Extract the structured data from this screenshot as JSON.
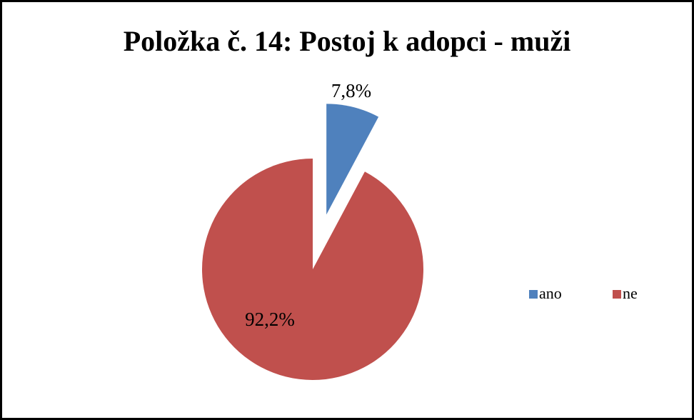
{
  "chart_data": {
    "type": "pie",
    "title": "Položka č. 14: Postoj k adopci - muži",
    "categories": [
      "ano",
      "ne"
    ],
    "values": [
      7.8,
      92.2
    ],
    "value_labels": [
      "7,8%",
      "92,2%"
    ],
    "colors": [
      "#4f81bd",
      "#c0504d"
    ],
    "explode": [
      true,
      false
    ],
    "legend": "right"
  }
}
